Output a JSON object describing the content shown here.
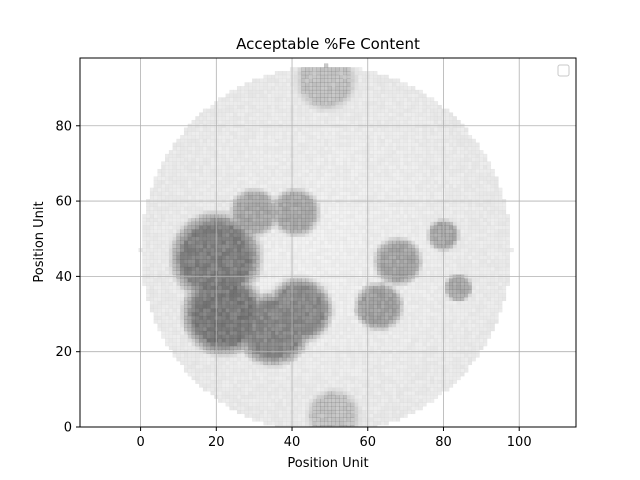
{
  "chart_data": {
    "type": "heatmap",
    "title": "Acceptable %Fe Content",
    "xlabel": "Position Unit",
    "ylabel": "Position Unit",
    "xlim": [
      -16,
      115
    ],
    "ylim": [
      0,
      98
    ],
    "xticks": [
      0,
      20,
      40,
      60,
      80,
      100
    ],
    "yticks": [
      0,
      20,
      40,
      60,
      80
    ],
    "xtick_labels": [
      "0",
      "20",
      "40",
      "60",
      "80",
      "100"
    ],
    "ytick_labels": [
      "0",
      "20",
      "40",
      "60",
      "80"
    ],
    "grid": true,
    "legend": {
      "placement": "top-right",
      "entries": []
    },
    "colormap": "greys",
    "disk": {
      "center": [
        49,
        47
      ],
      "radius": 49
    },
    "dark_regions": [
      {
        "center": [
          20,
          45
        ],
        "radius": 11,
        "level": 0.75
      },
      {
        "center": [
          22,
          30
        ],
        "radius": 10,
        "level": 0.78
      },
      {
        "center": [
          35,
          26
        ],
        "radius": 9,
        "level": 0.7
      },
      {
        "center": [
          42,
          31
        ],
        "radius": 8,
        "level": 0.68
      },
      {
        "center": [
          30,
          57
        ],
        "radius": 6,
        "level": 0.5
      },
      {
        "center": [
          41,
          57
        ],
        "radius": 6,
        "level": 0.5
      },
      {
        "center": [
          63,
          32
        ],
        "radius": 6,
        "level": 0.55
      },
      {
        "center": [
          68,
          44
        ],
        "radius": 6,
        "level": 0.52
      },
      {
        "center": [
          80,
          51
        ],
        "radius": 4,
        "level": 0.5
      },
      {
        "center": [
          84,
          37
        ],
        "radius": 3.5,
        "level": 0.5
      },
      {
        "center": [
          49,
          92
        ],
        "radius": 8,
        "level": 0.35
      },
      {
        "center": [
          51,
          3
        ],
        "radius": 7,
        "level": 0.35
      }
    ]
  }
}
